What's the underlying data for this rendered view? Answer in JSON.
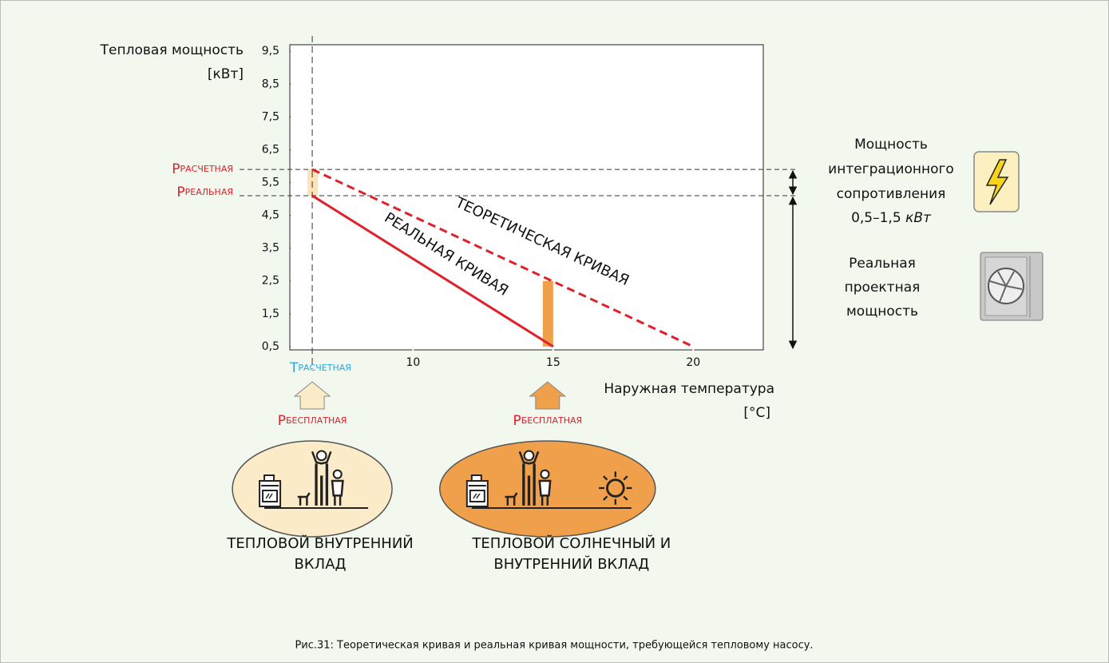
{
  "chart_data": {
    "type": "line",
    "y_label": "Тепловая мощность",
    "y_unit": "[кВт]",
    "x_label": "Наружная температура",
    "x_unit": "[°C]",
    "xlim": [
      5.6,
      22.5
    ],
    "ylim": [
      0.4,
      9.7
    ],
    "xticks": [
      10,
      15,
      20
    ],
    "yticks": [
      {
        "value": 0.5,
        "label": "0,5"
      },
      {
        "value": 1.5,
        "label": "1,5"
      },
      {
        "value": 2.5,
        "label": "2,5"
      },
      {
        "value": 3.5,
        "label": "3,5"
      },
      {
        "value": 4.5,
        "label": "4,5"
      },
      {
        "value": 5.5,
        "label": "5,5"
      },
      {
        "value": 6.5,
        "label": "6,5"
      },
      {
        "value": 7.5,
        "label": "7,5"
      },
      {
        "value": 8.5,
        "label": "8,5"
      },
      {
        "value": 9.5,
        "label": "9,5"
      }
    ],
    "series": [
      {
        "name": "РЕАЛЬНАЯ КРИВАЯ",
        "color": "#e0202a",
        "dashed": false,
        "x": [
          6.4,
          15
        ],
        "values": [
          5.1,
          0.5
        ]
      },
      {
        "name": "ТЕОРЕТИЧЕСКАЯ КРИВАЯ",
        "color": "#e0202a",
        "dashed": true,
        "x": [
          6.4,
          20
        ],
        "values": [
          5.9,
          0.5
        ]
      }
    ],
    "bars": [
      {
        "x": 6.4,
        "low": 5.1,
        "high": 5.9,
        "color": "#fde3b8"
      },
      {
        "x": 15,
        "low": 0.5,
        "high": 2.5,
        "color": "#f0a04b"
      }
    ],
    "reference_lines": [
      {
        "value": 5.9,
        "symbol": "P",
        "subscript": "РАСЧЕТНАЯ",
        "color": "#e0202a"
      },
      {
        "value": 5.1,
        "symbol": "P",
        "subscript": "РЕАЛЬНАЯ",
        "color": "#e0202a"
      }
    ],
    "vertical_line": {
      "value": 6.4,
      "symbol": "T",
      "subscript": "РАСЧЕТНАЯ",
      "color": "#29a8e0"
    },
    "integration_power": {
      "lines": [
        "Мощность",
        "интеграционного",
        "сопротивления"
      ],
      "range": "0,5–1,5",
      "unit": "кВт"
    },
    "real_power": {
      "lines": [
        "Реальная",
        "проектная",
        "мощность"
      ]
    },
    "free_heat": [
      {
        "x": 6.4,
        "symbol": "P",
        "subscript": "БЕСПЛАТНАЯ",
        "color": "#fcebc8",
        "caption": [
          "ТЕПЛОВОЙ ВНУТРЕННИЙ",
          "ВКЛАД"
        ]
      },
      {
        "x": 14.8,
        "symbol": "P",
        "subscript": "БЕСПЛАТНАЯ",
        "color": "#f0a04b",
        "caption": [
          "ТЕПЛОВОЙ СОЛНЕЧНЫЙ И",
          "ВНУТРЕННИЙ ВКЛАД"
        ]
      }
    ],
    "caption": "Рис.31: Теоретическая кривая и реальная кривая мощности, требующейся тепловому насосу."
  }
}
